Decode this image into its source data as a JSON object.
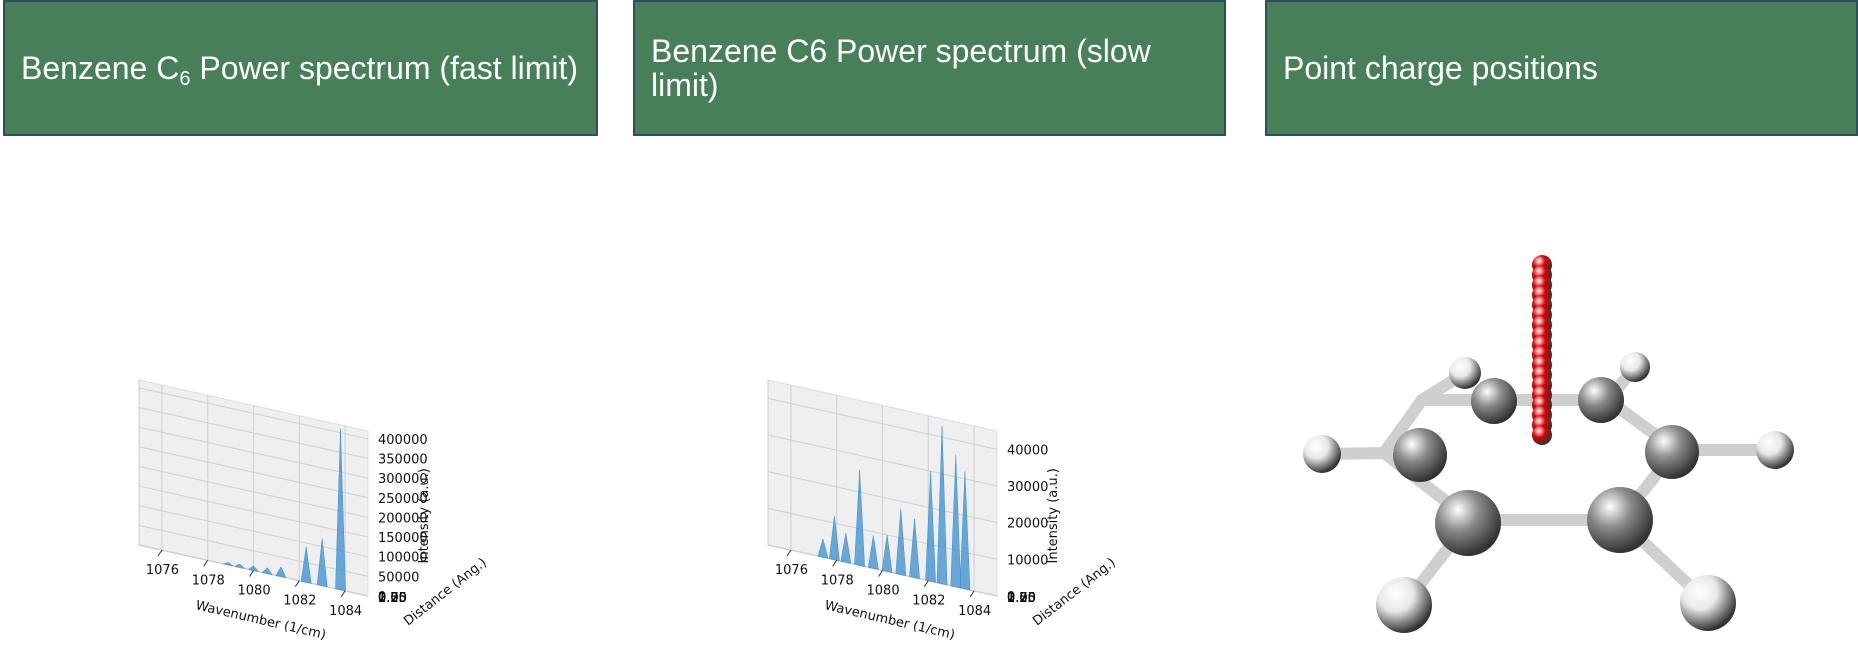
{
  "headers": [
    {
      "text_a": "Benzene C",
      "sub": "6",
      "text_b": " Power spectrum (fast limit)"
    },
    {
      "text_a": "Benzene C6 Power spectrum (slow limit)",
      "sub": "",
      "text_b": ""
    },
    {
      "text_a": "Point charge positions",
      "sub": "",
      "text_b": ""
    }
  ],
  "chart_data": [
    {
      "type": "area",
      "title": "",
      "xlabel": "Wavenumber (1/cm)",
      "ylabel": "Distance (Ang.)",
      "zlabel": "Intensity (a.u.)",
      "x_ticks": [
        "1076",
        "1078",
        "1080",
        "1082",
        "1084"
      ],
      "y_ticks": [
        "0.00",
        "0.25",
        "0.50",
        "0.75",
        "1.00",
        "1.25",
        "1.50",
        "1.75",
        "2.00"
      ],
      "z_ticks": [
        "0",
        "50000",
        "100000",
        "150000",
        "200000",
        "250000",
        "300000",
        "350000",
        "400000"
      ],
      "xlim": [
        1075,
        1085
      ],
      "ylim": [
        0,
        2
      ],
      "zlim": [
        0,
        420000
      ],
      "color": "#3a8fd0",
      "peaks": [
        {
          "x": 1083.8,
          "y": 0.1,
          "z": 410000
        },
        {
          "x": 1083.0,
          "y": 0.1,
          "z": 120000
        },
        {
          "x": 1082.3,
          "y": 0.2,
          "z": 90000
        },
        {
          "x": 1081.2,
          "y": 0.3,
          "z": 25000
        },
        {
          "x": 1080.6,
          "y": 0.4,
          "z": 15000
        },
        {
          "x": 1080.0,
          "y": 0.6,
          "z": 12000
        },
        {
          "x": 1079.4,
          "y": 0.8,
          "z": 9000
        },
        {
          "x": 1078.9,
          "y": 1.0,
          "z": 6000
        }
      ]
    },
    {
      "type": "area",
      "title": "",
      "xlabel": "Wavenumber (1/cm)",
      "ylabel": "Distance (Ang.)",
      "zlabel": "Intensity (a.u.)",
      "x_ticks": [
        "1076",
        "1078",
        "1080",
        "1082",
        "1084"
      ],
      "y_ticks": [
        "0.00",
        "0.25",
        "0.50",
        "0.75",
        "1.00",
        "1.25",
        "1.50",
        "1.75",
        "2.00"
      ],
      "z_ticks": [
        "0",
        "10000",
        "20000",
        "30000",
        "40000"
      ],
      "xlim": [
        1075,
        1085
      ],
      "ylim": [
        0,
        2
      ],
      "zlim": [
        0,
        45000
      ],
      "color": "#3a8fd0",
      "peaks": [
        {
          "x": 1083.6,
          "y": 0.1,
          "z": 32000
        },
        {
          "x": 1083.2,
          "y": 0.2,
          "z": 36000
        },
        {
          "x": 1082.6,
          "y": 0.3,
          "z": 43000
        },
        {
          "x": 1082.1,
          "y": 0.4,
          "z": 30000
        },
        {
          "x": 1081.4,
          "y": 0.55,
          "z": 16000
        },
        {
          "x": 1080.8,
          "y": 0.7,
          "z": 18000
        },
        {
          "x": 1080.2,
          "y": 0.85,
          "z": 10000
        },
        {
          "x": 1079.6,
          "y": 1.0,
          "z": 9000
        },
        {
          "x": 1079.0,
          "y": 1.15,
          "z": 26000
        },
        {
          "x": 1078.4,
          "y": 1.3,
          "z": 8000
        },
        {
          "x": 1077.9,
          "y": 1.45,
          "z": 12000
        },
        {
          "x": 1077.4,
          "y": 1.6,
          "z": 5000
        }
      ]
    }
  ],
  "molecule": {
    "carbon_color": "#8a8a8a",
    "hydrogen_color": "#e8e8e8",
    "charge_color": "#dd0000",
    "charge_count": 18
  }
}
